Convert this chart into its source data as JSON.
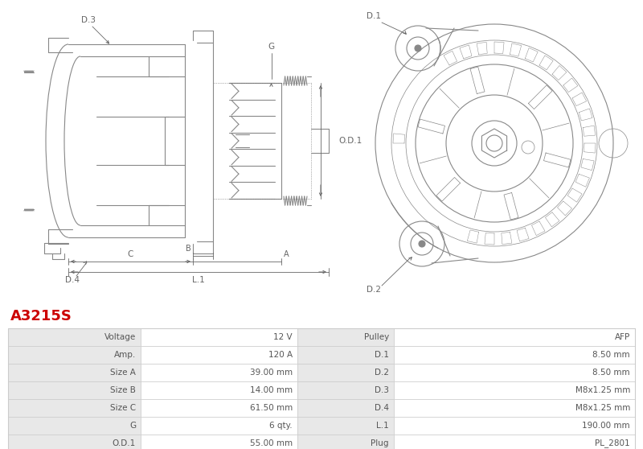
{
  "title": "A3215S",
  "title_color": "#cc0000",
  "bg_color": "#ffffff",
  "table_rows": [
    [
      "Voltage",
      "12 V",
      "Pulley",
      "AFP"
    ],
    [
      "Amp.",
      "120 A",
      "D.1",
      "8.50 mm"
    ],
    [
      "Size A",
      "39.00 mm",
      "D.2",
      "8.50 mm"
    ],
    [
      "Size B",
      "14.00 mm",
      "D.3",
      "M8x1.25 mm"
    ],
    [
      "Size C",
      "61.50 mm",
      "D.4",
      "M8x1.25 mm"
    ],
    [
      "G",
      "6 qty.",
      "L.1",
      "190.00 mm"
    ],
    [
      "O.D.1",
      "55.00 mm",
      "Plug",
      "PL_2801"
    ]
  ],
  "draw_color": "#888888",
  "dim_color": "#666666",
  "line_width": 0.8,
  "thin_lw": 0.5,
  "row_bg_label": "#e8e8e8",
  "row_bg_value": "#f8f8f8",
  "border_color": "#cccccc",
  "text_color": "#555555",
  "font_size_table": 7.5
}
